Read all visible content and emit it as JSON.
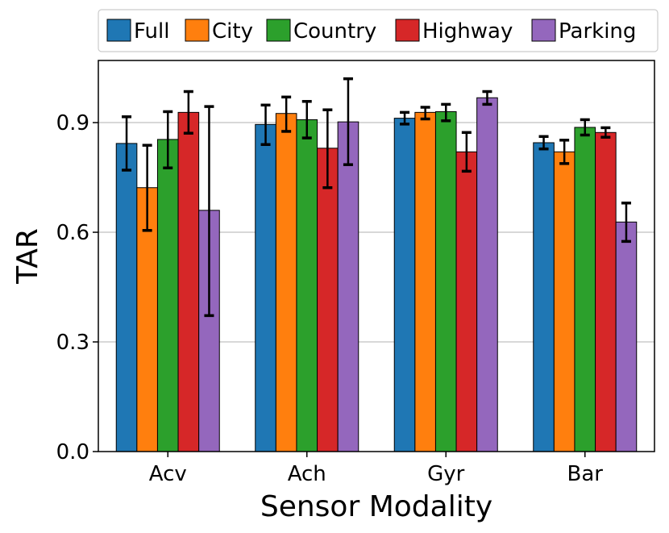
{
  "chart_data": {
    "type": "bar",
    "title": "",
    "xlabel": "Sensor Modality",
    "ylabel": "TAR",
    "ylim": [
      0,
      1.07
    ],
    "yticks": [
      0.0,
      0.3,
      0.6,
      0.9
    ],
    "ytick_labels": [
      "0.0",
      "0.3",
      "0.6",
      "0.9"
    ],
    "grid": "horizontal",
    "legend_position": "top",
    "categories": [
      "Acv",
      "Ach",
      "Gyr",
      "Bar"
    ],
    "series": [
      {
        "name": "Full",
        "color": "#1f77b4",
        "values": [
          0.843,
          0.895,
          0.912,
          0.845
        ],
        "err_low": [
          0.77,
          0.84,
          0.896,
          0.828
        ],
        "err_high": [
          0.916,
          0.948,
          0.928,
          0.862
        ]
      },
      {
        "name": "City",
        "color": "#ff7f0e",
        "values": [
          0.722,
          0.925,
          0.928,
          0.82
        ],
        "err_low": [
          0.605,
          0.876,
          0.91,
          0.788
        ],
        "err_high": [
          0.838,
          0.97,
          0.942,
          0.852
        ]
      },
      {
        "name": "Country",
        "color": "#2ca02c",
        "values": [
          0.854,
          0.908,
          0.93,
          0.887
        ],
        "err_low": [
          0.776,
          0.858,
          0.905,
          0.866
        ],
        "err_high": [
          0.93,
          0.958,
          0.95,
          0.908
        ]
      },
      {
        "name": "Highway",
        "color": "#d62728",
        "values": [
          0.928,
          0.83,
          0.82,
          0.873
        ],
        "err_low": [
          0.871,
          0.722,
          0.767,
          0.86
        ],
        "err_high": [
          0.985,
          0.935,
          0.873,
          0.886
        ]
      },
      {
        "name": "Parking",
        "color": "#9467bd",
        "values": [
          0.66,
          0.902,
          0.968,
          0.628
        ],
        "err_low": [
          0.372,
          0.785,
          0.95,
          0.575
        ],
        "err_high": [
          0.944,
          1.02,
          0.985,
          0.68
        ]
      }
    ]
  }
}
